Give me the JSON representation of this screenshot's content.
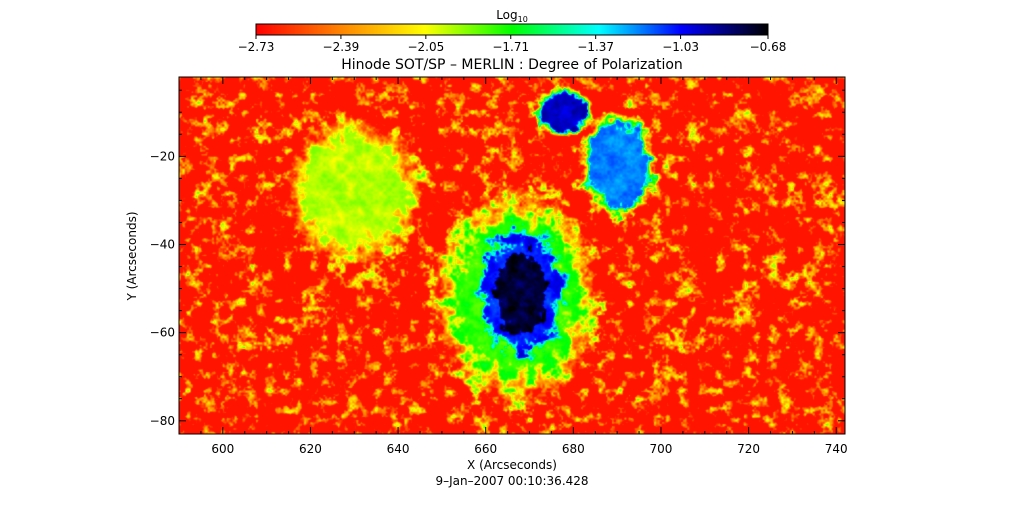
{
  "chart_data": {
    "type": "heatmap",
    "title": "Hinode SOT/SP – MERLIN : Degree of Polarization",
    "xlabel": "X (Arcseconds)",
    "ylabel": "Y (Arcseconds)",
    "subtitle": "9–Jan–2007 00:10:36.428",
    "xlim": [
      590,
      742
    ],
    "ylim": [
      -83,
      -2
    ],
    "x_ticks": [
      600,
      620,
      640,
      660,
      680,
      700,
      720,
      740
    ],
    "x_tick_labels": [
      "600",
      "620",
      "640",
      "660",
      "680",
      "700",
      "720",
      "740"
    ],
    "y_ticks": [
      -80,
      -60,
      -40,
      -20
    ],
    "y_tick_labels": [
      "−80",
      "−60",
      "−40",
      "−20"
    ],
    "colorbar": {
      "title_base": "Log",
      "title_sub": "10",
      "range": [
        -2.73,
        -0.68
      ],
      "ticks": [
        -2.73,
        -2.39,
        -2.05,
        -1.71,
        -1.37,
        -1.03,
        -0.68
      ],
      "tick_labels": [
        "−2.73",
        "−2.39",
        "−2.05",
        "−1.71",
        "−1.37",
        "−1.03",
        "−0.68"
      ],
      "colors": [
        "#ff0000",
        "#ff8800",
        "#ffff00",
        "#00ff00",
        "#00ffff",
        "#0000ff",
        "#000000"
      ]
    },
    "features": [
      {
        "x": 668,
        "y": -51,
        "sx": 7,
        "sy": 11,
        "level": -0.75
      },
      {
        "x": 668,
        "y": -51,
        "sx": 10.5,
        "sy": 15,
        "level": -1.05
      },
      {
        "x": 667,
        "y": -52,
        "sx": 17,
        "sy": 22,
        "level": -1.75
      },
      {
        "x": 690,
        "y": -22,
        "sx": 8,
        "sy": 11,
        "level": -1.2
      },
      {
        "x": 678,
        "y": -10,
        "sx": 6,
        "sy": 5,
        "level": -0.95
      },
      {
        "x": 630,
        "y": -28,
        "sx": 14,
        "sy": 15,
        "level": -1.95
      }
    ]
  }
}
